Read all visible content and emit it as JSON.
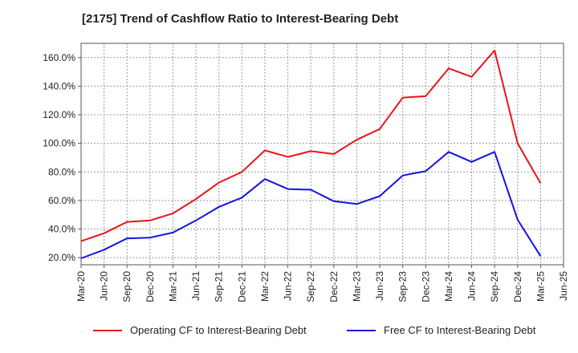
{
  "chart_data": {
    "type": "line",
    "title": "[2175]  Trend of Cashflow Ratio to Interest-Bearing Debt",
    "xlabel": "",
    "ylabel": "",
    "categories": [
      "Mar-20",
      "Jun-20",
      "Sep-20",
      "Dec-20",
      "Mar-21",
      "Jun-21",
      "Sep-21",
      "Dec-21",
      "Mar-22",
      "Jun-22",
      "Sep-22",
      "Dec-22",
      "Mar-23",
      "Jun-23",
      "Sep-23",
      "Dec-23",
      "Mar-24",
      "Jun-24",
      "Sep-24",
      "Dec-24",
      "Mar-25",
      "Jun-25"
    ],
    "yticks": [
      "20.0%",
      "40.0%",
      "60.0%",
      "80.0%",
      "100.0%",
      "120.0%",
      "140.0%",
      "160.0%"
    ],
    "ylim": [
      15,
      170
    ],
    "grid": true,
    "legend_position": "bottom",
    "series": [
      {
        "name": "Operating CF to Interest-Bearing Debt",
        "color": "#e8141b",
        "values": [
          31.5,
          37.0,
          45.0,
          46.0,
          51.0,
          61.0,
          72.5,
          80.0,
          95.0,
          90.5,
          94.5,
          92.5,
          102.5,
          110.0,
          132.0,
          133.0,
          152.5,
          146.5,
          165.0,
          100.0,
          72.0,
          null
        ]
      },
      {
        "name": "Free CF to Interest-Bearing Debt",
        "color": "#1414e0",
        "values": [
          19.5,
          25.5,
          33.5,
          34.0,
          37.5,
          46.0,
          55.5,
          62.0,
          75.0,
          68.0,
          67.5,
          59.5,
          57.5,
          63.0,
          77.5,
          80.5,
          94.0,
          87.0,
          94.0,
          46.5,
          21.0,
          null
        ]
      }
    ]
  }
}
